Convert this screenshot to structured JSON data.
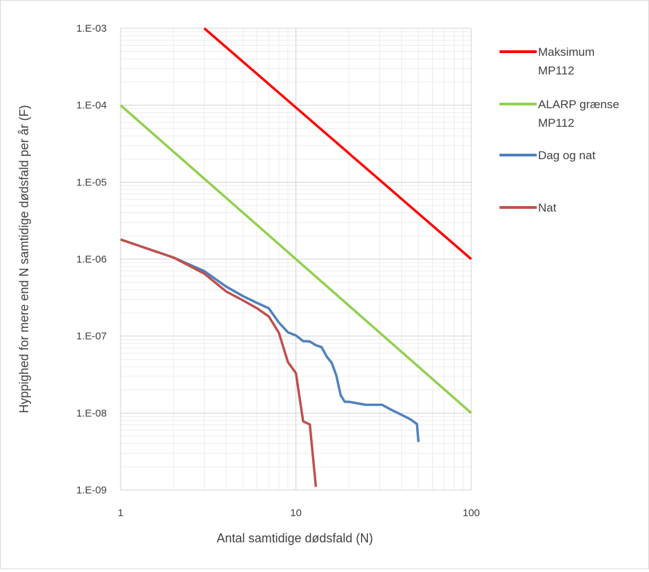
{
  "chart_data": {
    "type": "line",
    "xlabel": "Antal samtidige dødsfald (N)",
    "ylabel": "Hyppighed for mere end N samtidige dødsfald per år (F)",
    "xscale": "log",
    "yscale": "log",
    "xlim": [
      1,
      100
    ],
    "ylim": [
      1e-09,
      0.001
    ],
    "grid": true,
    "legend_position": "right",
    "x_ticks": [
      {
        "value": 1,
        "label": "1"
      },
      {
        "value": 10,
        "label": "10"
      },
      {
        "value": 100,
        "label": "100"
      }
    ],
    "y_ticks": [
      {
        "value": 0.001,
        "label": "1.E-03"
      },
      {
        "value": 0.0001,
        "label": "1.E-04"
      },
      {
        "value": 1e-05,
        "label": "1.E-05"
      },
      {
        "value": 1e-06,
        "label": "1.E-06"
      },
      {
        "value": 1e-07,
        "label": "1.E-07"
      },
      {
        "value": 1e-08,
        "label": "1.E-08"
      },
      {
        "value": 1e-09,
        "label": "1.E-09"
      }
    ],
    "series": [
      {
        "name": "Maksimum MP112",
        "legend_lines": [
          "Maksimum",
          "MP112"
        ],
        "color": "#ff0000",
        "x": [
          3,
          100
        ],
        "y": [
          0.001,
          1e-06
        ]
      },
      {
        "name": "ALARP grænse MP112",
        "legend_lines": [
          "ALARP grænse",
          "MP112"
        ],
        "color": "#92d050",
        "x": [
          1,
          100
        ],
        "y": [
          0.0001,
          1e-08
        ]
      },
      {
        "name": "Dag og nat",
        "legend_lines": [
          "Dag og nat"
        ],
        "color": "#4f81bd",
        "x": [
          1,
          2,
          3,
          4,
          5,
          6,
          7,
          8,
          9,
          10,
          11,
          12,
          13,
          14,
          15,
          16,
          17,
          18,
          19,
          20,
          25,
          31,
          35,
          40,
          45,
          49,
          50
        ],
        "y": [
          1.8e-06,
          1.05e-06,
          7e-07,
          4.4e-07,
          3.3e-07,
          2.7e-07,
          2.3e-07,
          1.5e-07,
          1.12e-07,
          1.02e-07,
          8.6e-08,
          8.5e-08,
          7.6e-08,
          7.2e-08,
          5.4e-08,
          4.5e-08,
          3.1e-08,
          1.7e-08,
          1.4e-08,
          1.4e-08,
          1.28e-08,
          1.28e-08,
          1.1e-08,
          9.5e-09,
          8.3e-09,
          7.2e-09,
          4.2e-09
        ]
      },
      {
        "name": "Nat",
        "legend_lines": [
          "Nat"
        ],
        "color": "#c0504d",
        "x": [
          1,
          2,
          3,
          4,
          5,
          6,
          7,
          7.5,
          8,
          9,
          10,
          11,
          12,
          13
        ],
        "y": [
          1.8e-06,
          1.05e-06,
          6.5e-07,
          3.8e-07,
          2.9e-07,
          2.3e-07,
          1.8e-07,
          1.4e-07,
          1.1e-07,
          4.6e-08,
          3.3e-08,
          7.8e-09,
          7.1e-09,
          1.1e-09
        ]
      }
    ]
  }
}
